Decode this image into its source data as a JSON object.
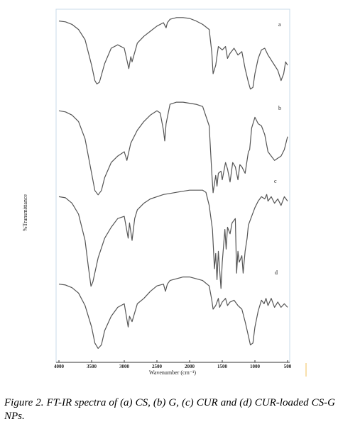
{
  "caption": "Figure 2. FT-IR spectra of (a) CS, (b) G, (c) CUR and (d) CUR-loaded CS-G NPs.",
  "chart_data": {
    "type": "line",
    "title": "",
    "xlabel": "Wavenumber (cm⁻¹)",
    "ylabel": "%Transmittance",
    "xlim": [
      4000,
      500
    ],
    "x_reversed": true,
    "xticks": [
      "4000",
      "3500",
      "3000",
      "2500",
      "2000",
      "1500",
      "1000",
      "500"
    ],
    "y_ticks_shown": false,
    "line_color": "#555555",
    "series": [
      {
        "name": "a",
        "points": [
          [
            4000,
            0.92
          ],
          [
            3900,
            0.91
          ],
          [
            3800,
            0.88
          ],
          [
            3700,
            0.82
          ],
          [
            3600,
            0.7
          ],
          [
            3500,
            0.4
          ],
          [
            3450,
            0.22
          ],
          [
            3420,
            0.18
          ],
          [
            3380,
            0.2
          ],
          [
            3300,
            0.42
          ],
          [
            3200,
            0.6
          ],
          [
            3100,
            0.64
          ],
          [
            3000,
            0.6
          ],
          [
            2930,
            0.36
          ],
          [
            2900,
            0.5
          ],
          [
            2880,
            0.44
          ],
          [
            2800,
            0.66
          ],
          [
            2700,
            0.74
          ],
          [
            2600,
            0.8
          ],
          [
            2500,
            0.86
          ],
          [
            2400,
            0.9
          ],
          [
            2360,
            0.84
          ],
          [
            2340,
            0.9
          ],
          [
            2300,
            0.94
          ],
          [
            2200,
            0.96
          ],
          [
            2100,
            0.96
          ],
          [
            2000,
            0.95
          ],
          [
            1900,
            0.92
          ],
          [
            1800,
            0.88
          ],
          [
            1700,
            0.82
          ],
          [
            1660,
            0.55
          ],
          [
            1640,
            0.3
          ],
          [
            1600,
            0.4
          ],
          [
            1560,
            0.62
          ],
          [
            1500,
            0.58
          ],
          [
            1450,
            0.62
          ],
          [
            1420,
            0.48
          ],
          [
            1380,
            0.54
          ],
          [
            1320,
            0.6
          ],
          [
            1260,
            0.52
          ],
          [
            1200,
            0.56
          ],
          [
            1150,
            0.36
          ],
          [
            1100,
            0.2
          ],
          [
            1070,
            0.12
          ],
          [
            1030,
            0.14
          ],
          [
            1000,
            0.3
          ],
          [
            950,
            0.48
          ],
          [
            900,
            0.58
          ],
          [
            850,
            0.6
          ],
          [
            800,
            0.52
          ],
          [
            750,
            0.46
          ],
          [
            700,
            0.4
          ],
          [
            650,
            0.34
          ],
          [
            600,
            0.22
          ],
          [
            560,
            0.3
          ],
          [
            530,
            0.44
          ],
          [
            500,
            0.4
          ]
        ]
      },
      {
        "name": "b",
        "points": [
          [
            4000,
            0.88
          ],
          [
            3900,
            0.87
          ],
          [
            3800,
            0.84
          ],
          [
            3700,
            0.78
          ],
          [
            3600,
            0.62
          ],
          [
            3500,
            0.3
          ],
          [
            3450,
            0.14
          ],
          [
            3400,
            0.1
          ],
          [
            3350,
            0.14
          ],
          [
            3300,
            0.26
          ],
          [
            3200,
            0.4
          ],
          [
            3100,
            0.46
          ],
          [
            3000,
            0.5
          ],
          [
            2960,
            0.42
          ],
          [
            2900,
            0.58
          ],
          [
            2800,
            0.7
          ],
          [
            2700,
            0.78
          ],
          [
            2600,
            0.84
          ],
          [
            2500,
            0.88
          ],
          [
            2450,
            0.86
          ],
          [
            2400,
            0.7
          ],
          [
            2380,
            0.6
          ],
          [
            2360,
            0.76
          ],
          [
            2300,
            0.94
          ],
          [
            2200,
            0.96
          ],
          [
            2100,
            0.96
          ],
          [
            2000,
            0.95
          ],
          [
            1900,
            0.94
          ],
          [
            1800,
            0.92
          ],
          [
            1700,
            0.74
          ],
          [
            1660,
            0.3
          ],
          [
            1640,
            0.12
          ],
          [
            1600,
            0.28
          ],
          [
            1580,
            0.18
          ],
          [
            1560,
            0.3
          ],
          [
            1520,
            0.32
          ],
          [
            1500,
            0.24
          ],
          [
            1450,
            0.4
          ],
          [
            1420,
            0.34
          ],
          [
            1380,
            0.22
          ],
          [
            1340,
            0.4
          ],
          [
            1300,
            0.36
          ],
          [
            1260,
            0.24
          ],
          [
            1230,
            0.38
          ],
          [
            1200,
            0.36
          ],
          [
            1150,
            0.3
          ],
          [
            1100,
            0.5
          ],
          [
            1080,
            0.52
          ],
          [
            1050,
            0.72
          ],
          [
            1000,
            0.82
          ],
          [
            950,
            0.76
          ],
          [
            900,
            0.74
          ],
          [
            850,
            0.66
          ],
          [
            800,
            0.5
          ],
          [
            750,
            0.46
          ],
          [
            700,
            0.42
          ],
          [
            650,
            0.44
          ],
          [
            600,
            0.46
          ],
          [
            550,
            0.52
          ],
          [
            500,
            0.64
          ]
        ]
      },
      {
        "name": "c",
        "points": [
          [
            4000,
            0.9
          ],
          [
            3900,
            0.89
          ],
          [
            3800,
            0.84
          ],
          [
            3700,
            0.74
          ],
          [
            3600,
            0.5
          ],
          [
            3550,
            0.26
          ],
          [
            3510,
            0.08
          ],
          [
            3480,
            0.12
          ],
          [
            3400,
            0.34
          ],
          [
            3300,
            0.52
          ],
          [
            3200,
            0.62
          ],
          [
            3100,
            0.7
          ],
          [
            3000,
            0.72
          ],
          [
            2940,
            0.52
          ],
          [
            2920,
            0.66
          ],
          [
            2880,
            0.5
          ],
          [
            2840,
            0.7
          ],
          [
            2800,
            0.78
          ],
          [
            2700,
            0.84
          ],
          [
            2600,
            0.88
          ],
          [
            2500,
            0.9
          ],
          [
            2400,
            0.92
          ],
          [
            2300,
            0.93
          ],
          [
            2200,
            0.94
          ],
          [
            2100,
            0.95
          ],
          [
            2000,
            0.96
          ],
          [
            1900,
            0.96
          ],
          [
            1800,
            0.96
          ],
          [
            1750,
            0.94
          ],
          [
            1700,
            0.82
          ],
          [
            1650,
            0.6
          ],
          [
            1620,
            0.24
          ],
          [
            1600,
            0.38
          ],
          [
            1580,
            0.14
          ],
          [
            1560,
            0.4
          ],
          [
            1520,
            0.06
          ],
          [
            1500,
            0.3
          ],
          [
            1460,
            0.6
          ],
          [
            1440,
            0.42
          ],
          [
            1420,
            0.62
          ],
          [
            1380,
            0.56
          ],
          [
            1350,
            0.66
          ],
          [
            1300,
            0.7
          ],
          [
            1280,
            0.2
          ],
          [
            1260,
            0.4
          ],
          [
            1240,
            0.3
          ],
          [
            1200,
            0.36
          ],
          [
            1180,
            0.2
          ],
          [
            1150,
            0.4
          ],
          [
            1120,
            0.52
          ],
          [
            1100,
            0.64
          ],
          [
            1050,
            0.72
          ],
          [
            1000,
            0.8
          ],
          [
            950,
            0.86
          ],
          [
            900,
            0.9
          ],
          [
            850,
            0.88
          ],
          [
            820,
            0.92
          ],
          [
            800,
            0.86
          ],
          [
            750,
            0.9
          ],
          [
            700,
            0.84
          ],
          [
            650,
            0.88
          ],
          [
            600,
            0.82
          ],
          [
            550,
            0.9
          ],
          [
            500,
            0.86
          ]
        ]
      },
      {
        "name": "d",
        "points": [
          [
            4000,
            0.82
          ],
          [
            3900,
            0.81
          ],
          [
            3800,
            0.78
          ],
          [
            3700,
            0.72
          ],
          [
            3600,
            0.58
          ],
          [
            3500,
            0.34
          ],
          [
            3450,
            0.16
          ],
          [
            3400,
            0.1
          ],
          [
            3350,
            0.14
          ],
          [
            3300,
            0.3
          ],
          [
            3200,
            0.46
          ],
          [
            3100,
            0.56
          ],
          [
            3000,
            0.6
          ],
          [
            2940,
            0.34
          ],
          [
            2920,
            0.46
          ],
          [
            2880,
            0.4
          ],
          [
            2800,
            0.6
          ],
          [
            2700,
            0.66
          ],
          [
            2600,
            0.74
          ],
          [
            2500,
            0.8
          ],
          [
            2400,
            0.82
          ],
          [
            2370,
            0.74
          ],
          [
            2340,
            0.82
          ],
          [
            2300,
            0.86
          ],
          [
            2200,
            0.88
          ],
          [
            2100,
            0.9
          ],
          [
            2000,
            0.9
          ],
          [
            1900,
            0.88
          ],
          [
            1800,
            0.86
          ],
          [
            1700,
            0.8
          ],
          [
            1660,
            0.64
          ],
          [
            1640,
            0.54
          ],
          [
            1600,
            0.58
          ],
          [
            1560,
            0.66
          ],
          [
            1540,
            0.56
          ],
          [
            1500,
            0.62
          ],
          [
            1450,
            0.66
          ],
          [
            1420,
            0.58
          ],
          [
            1380,
            0.62
          ],
          [
            1320,
            0.64
          ],
          [
            1260,
            0.58
          ],
          [
            1200,
            0.54
          ],
          [
            1150,
            0.4
          ],
          [
            1100,
            0.24
          ],
          [
            1070,
            0.14
          ],
          [
            1030,
            0.16
          ],
          [
            1000,
            0.34
          ],
          [
            950,
            0.52
          ],
          [
            900,
            0.64
          ],
          [
            860,
            0.6
          ],
          [
            830,
            0.66
          ],
          [
            800,
            0.58
          ],
          [
            750,
            0.66
          ],
          [
            700,
            0.56
          ],
          [
            650,
            0.62
          ],
          [
            600,
            0.56
          ],
          [
            550,
            0.6
          ],
          [
            500,
            0.56
          ]
        ]
      }
    ]
  }
}
